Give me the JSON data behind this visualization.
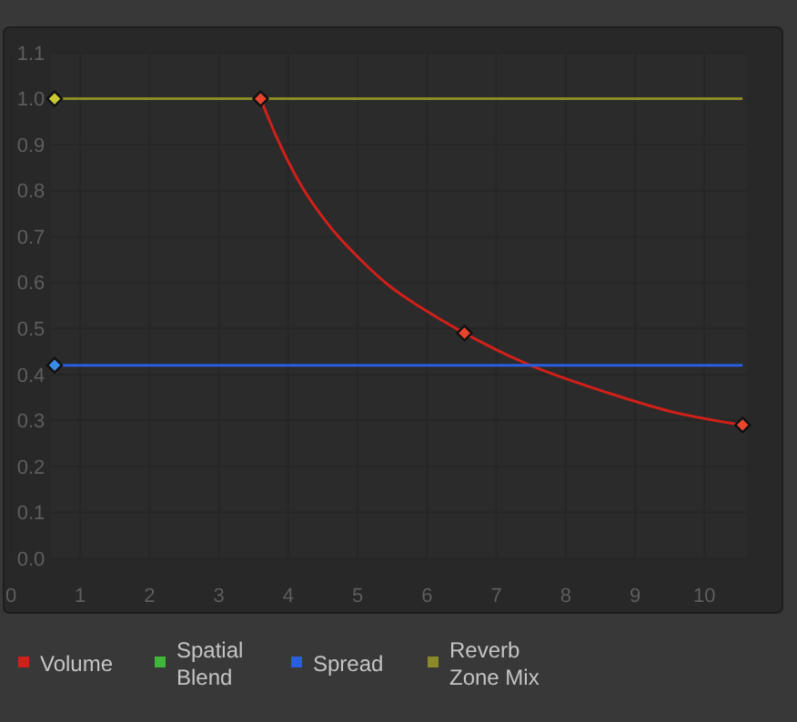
{
  "chart_data": {
    "type": "line",
    "xlim": [
      0,
      10.6
    ],
    "ylim": [
      0,
      1.1
    ],
    "xticks": [
      0,
      1,
      2,
      3,
      4,
      5,
      6,
      7,
      8,
      9,
      10
    ],
    "yticks": [
      {
        "value": 0,
        "label": "0.0"
      },
      0.1,
      0.2,
      0.3,
      0.4,
      0.5,
      0.6,
      0.7,
      0.8,
      0.9,
      {
        "value": 1,
        "label": "1.0"
      },
      1.1
    ],
    "grid": true,
    "legend": "bottom",
    "marker": "none",
    "line_style": "solid",
    "series": [
      {
        "name": "Volume",
        "color": "#d0201a",
        "x": [
          3.6,
          3.82,
          4.17,
          4.61,
          5.04,
          5.48,
          5.92,
          6.54,
          7.41,
          8.61,
          9.5,
          10.55
        ],
        "values": [
          1.0,
          0.92,
          0.815,
          0.72,
          0.65,
          0.59,
          0.545,
          0.49,
          0.425,
          0.36,
          0.32,
          0.29
        ]
      },
      {
        "name": "Spatial Blend",
        "color": "#3fb83a"
      },
      {
        "name": "Spread",
        "color": "#2a5ee0",
        "x": [
          0.63,
          10.55
        ],
        "values": [
          0.42,
          0.42
        ]
      },
      {
        "name": "Reverb Zone Mix",
        "color": "#8a8a28",
        "x": [
          0.63,
          10.55
        ],
        "values": [
          1.0,
          1.0
        ]
      },
      {
        "type": "scatter",
        "marker": "diamond",
        "color": "#e8452f",
        "x": [
          3.6,
          6.54,
          10.55
        ],
        "values": [
          1.0,
          0.49,
          0.29
        ]
      },
      {
        "type": "scatter",
        "marker": "diamond",
        "color": "#3a8ae8",
        "x": [
          0.63
        ],
        "values": [
          0.42
        ]
      },
      {
        "type": "scatter",
        "marker": "diamond",
        "color": "#c8c832",
        "x": [
          0.63
        ],
        "values": [
          1.0
        ]
      }
    ]
  }
}
